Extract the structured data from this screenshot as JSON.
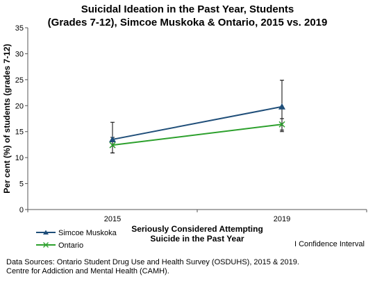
{
  "chart_data": {
    "type": "line",
    "title_lines": [
      "Suicidal Ideation in the Past Year, Students",
      "(Grades 7-12), Simcoe Muskoka & Ontario, 2015 vs. 2019"
    ],
    "xlabel_lines": [
      "Seriously Considered Attempting",
      "Suicide in the Past Year"
    ],
    "ylabel": "Per cent (%) of students (grades 7-12)",
    "categories": [
      "2015",
      "2019"
    ],
    "ylim": [
      0,
      35
    ],
    "yticks": [
      "0",
      "5",
      "10",
      "15",
      "20",
      "25",
      "30",
      "35"
    ],
    "grid": false,
    "legend_position": "bottom-left",
    "series": [
      {
        "name": "Simcoe Muskoka",
        "values": [
          13.5,
          19.8
        ],
        "ci_low": [
          10.9,
          15.0
        ],
        "ci_high": [
          16.8,
          24.9
        ],
        "color": "#1f4e79",
        "marker": "triangle"
      },
      {
        "name": "Ontario",
        "values": [
          12.4,
          16.4
        ],
        "ci_low": [
          10.9,
          15.3
        ],
        "ci_high": [
          13.9,
          17.5
        ],
        "color": "#2ca02c",
        "marker": "x"
      }
    ],
    "ci_note": "I Confidence Interval"
  },
  "footer": {
    "line1": "Data Sources: Ontario Student Drug Use and Health Survey (OSDUHS), 2015 & 2019.",
    "line2": "Centre for Addiction and Mental Health (CAMH)."
  }
}
